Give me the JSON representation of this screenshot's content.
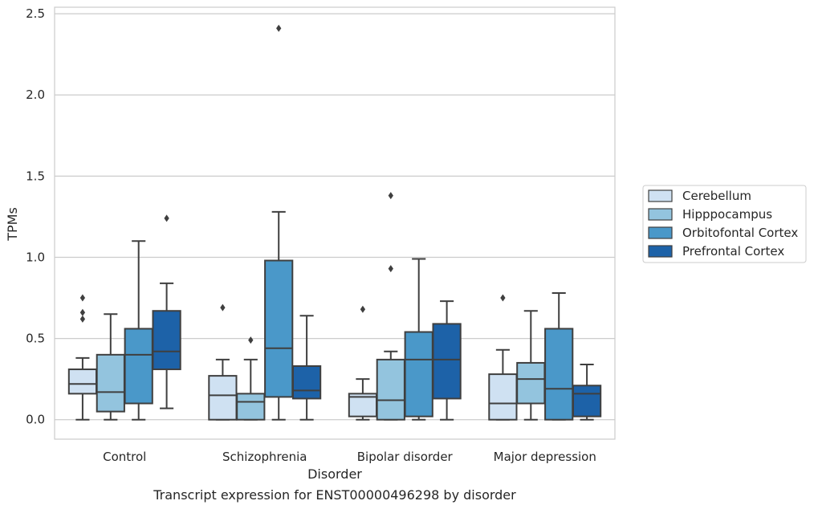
{
  "chart_data": {
    "type": "boxplot",
    "title": "",
    "caption": "Transcript expression for ENST00000496298 by disorder",
    "xlabel": "Disorder",
    "ylabel": "TPMs",
    "ylim": [
      -0.12,
      2.54
    ],
    "yticks": [
      "0.0",
      "0.5",
      "1.0",
      "1.5",
      "2.0",
      "2.5"
    ],
    "grid": "horizontal",
    "legend_position": "right",
    "categories": [
      "Control",
      "Schizophrenia",
      "Bipolar disorder",
      "Major depression"
    ],
    "series": [
      {
        "name": "Cerebellum",
        "color": "#cfe1f2",
        "boxes": [
          {
            "whislo": 0.0,
            "q1": 0.16,
            "med": 0.22,
            "q3": 0.31,
            "whishi": 0.38,
            "fliers": [
              0.62,
              0.66,
              0.75
            ]
          },
          {
            "whislo": 0.0,
            "q1": 0.0,
            "med": 0.15,
            "q3": 0.27,
            "whishi": 0.37,
            "fliers": [
              0.69
            ]
          },
          {
            "whislo": 0.0,
            "q1": 0.02,
            "med": 0.14,
            "q3": 0.16,
            "whishi": 0.25,
            "fliers": [
              0.68
            ]
          },
          {
            "whislo": 0.0,
            "q1": 0.0,
            "med": 0.1,
            "q3": 0.28,
            "whishi": 0.43,
            "fliers": [
              0.75
            ]
          }
        ]
      },
      {
        "name": "Hipppocampus",
        "color": "#93c4de",
        "boxes": [
          {
            "whislo": 0.0,
            "q1": 0.05,
            "med": 0.17,
            "q3": 0.4,
            "whishi": 0.65,
            "fliers": []
          },
          {
            "whislo": 0.0,
            "q1": 0.0,
            "med": 0.11,
            "q3": 0.16,
            "whishi": 0.37,
            "fliers": [
              0.49
            ]
          },
          {
            "whislo": 0.0,
            "q1": 0.0,
            "med": 0.12,
            "q3": 0.37,
            "whishi": 0.42,
            "fliers": [
              0.93,
              1.38
            ]
          },
          {
            "whislo": 0.0,
            "q1": 0.1,
            "med": 0.25,
            "q3": 0.35,
            "whishi": 0.67,
            "fliers": []
          }
        ]
      },
      {
        "name": "Orbitofontal Cortex",
        "color": "#4a98c9",
        "boxes": [
          {
            "whislo": 0.0,
            "q1": 0.1,
            "med": 0.4,
            "q3": 0.56,
            "whishi": 1.1,
            "fliers": []
          },
          {
            "whislo": 0.0,
            "q1": 0.14,
            "med": 0.44,
            "q3": 0.98,
            "whishi": 1.28,
            "fliers": [
              2.41
            ]
          },
          {
            "whislo": 0.0,
            "q1": 0.02,
            "med": 0.37,
            "q3": 0.54,
            "whishi": 0.99,
            "fliers": []
          },
          {
            "whislo": 0.0,
            "q1": 0.0,
            "med": 0.19,
            "q3": 0.56,
            "whishi": 0.78,
            "fliers": []
          }
        ]
      },
      {
        "name": "Prefrontal Cortex",
        "color": "#1d62a8",
        "boxes": [
          {
            "whislo": 0.07,
            "q1": 0.31,
            "med": 0.42,
            "q3": 0.67,
            "whishi": 0.84,
            "fliers": [
              1.24
            ]
          },
          {
            "whislo": 0.0,
            "q1": 0.13,
            "med": 0.18,
            "q3": 0.33,
            "whishi": 0.64,
            "fliers": []
          },
          {
            "whislo": 0.0,
            "q1": 0.13,
            "med": 0.37,
            "q3": 0.59,
            "whishi": 0.73,
            "fliers": []
          },
          {
            "whislo": 0.0,
            "q1": 0.02,
            "med": 0.16,
            "q3": 0.21,
            "whishi": 0.34,
            "fliers": []
          }
        ]
      }
    ]
  }
}
